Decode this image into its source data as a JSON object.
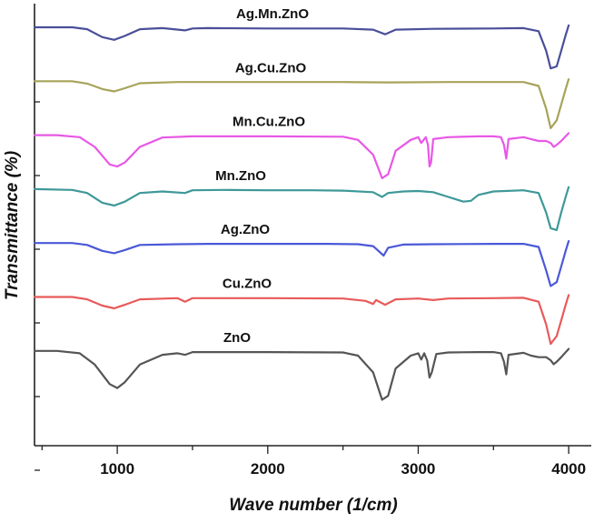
{
  "chart_data": {
    "type": "line",
    "title": "",
    "xlabel": "Wave number (1/cm)",
    "ylabel": "Transmittance (%)",
    "xlim": [
      450,
      4150
    ],
    "xticks": [
      1000,
      2000,
      3000,
      4000
    ],
    "xtick_labels": [
      "1000",
      "2000",
      "3000",
      "4000"
    ],
    "y_tick_count": 6,
    "grid": false,
    "legend": "inline labels above each curve",
    "series": [
      {
        "name": "Ag.Mn.ZnO",
        "color": "#4a4f99",
        "baseline": 0,
        "x": [
          450,
          700,
          800,
          900,
          980,
          1050,
          1150,
          1300,
          1450,
          1500,
          1600,
          2000,
          2500,
          2700,
          2780,
          2850,
          3100,
          3500,
          3700,
          3800,
          3850,
          3880,
          3920,
          3950,
          3980,
          4000
        ],
        "y": [
          0,
          0,
          -0.5,
          -2.5,
          -3.2,
          -2.2,
          -0.5,
          -0.2,
          -0.8,
          -0.3,
          -0.2,
          -0.3,
          -0.3,
          -0.6,
          -1.8,
          -0.6,
          -0.4,
          -0.3,
          -0.2,
          -1.0,
          -6.0,
          -10.5,
          -10.0,
          -6.0,
          -2.0,
          0.5
        ]
      },
      {
        "name": "Ag.Cu.ZnO",
        "color": "#a7a35a",
        "baseline": 1,
        "x": [
          450,
          700,
          800,
          900,
          980,
          1050,
          1150,
          1400,
          1600,
          2000,
          2500,
          2800,
          3200,
          3500,
          3700,
          3800,
          3850,
          3880,
          3920,
          3950,
          3980,
          4000
        ],
        "y": [
          0,
          0,
          -0.6,
          -2.0,
          -2.6,
          -1.8,
          -0.5,
          -0.2,
          -0.2,
          -0.2,
          -0.2,
          -0.3,
          -0.2,
          -0.2,
          -0.2,
          -1.2,
          -7.0,
          -12.0,
          -10.0,
          -6.0,
          -2.0,
          0.5
        ]
      },
      {
        "name": "Mn.Cu.ZnO",
        "color": "#e858e6",
        "baseline": 2,
        "x": [
          450,
          600,
          750,
          850,
          950,
          1000,
          1050,
          1150,
          1300,
          1500,
          2000,
          2500,
          2600,
          2700,
          2760,
          2800,
          2850,
          2950,
          3000,
          3020,
          3050,
          3065,
          3075,
          3085,
          3100,
          3200,
          3400,
          3500,
          3550,
          3570,
          3585,
          3600,
          3700,
          3750,
          3800,
          3850,
          3880,
          3900,
          3920,
          3950,
          4000
        ],
        "y": [
          0,
          0,
          -0.5,
          -3.0,
          -7.5,
          -8.0,
          -7.0,
          -3.0,
          -0.6,
          -0.3,
          -0.3,
          -0.4,
          -1.2,
          -5.0,
          -11.0,
          -10.0,
          -4.0,
          -1.2,
          -0.5,
          -2.0,
          -0.5,
          -2.5,
          -8.0,
          -7.0,
          -1.0,
          -0.5,
          -0.3,
          -0.3,
          -0.5,
          -2.5,
          -6.0,
          -1.0,
          -0.5,
          -1.0,
          -1.5,
          -1.5,
          -2.0,
          -3.0,
          -2.5,
          -1.5,
          0.5
        ]
      },
      {
        "name": "Mn.ZnO",
        "color": "#3f9898",
        "baseline": 3,
        "x": [
          450,
          700,
          800,
          900,
          980,
          1050,
          1150,
          1300,
          1450,
          1500,
          1700,
          2000,
          2300,
          2500,
          2700,
          2760,
          2800,
          2900,
          3000,
          3100,
          3200,
          3300,
          3350,
          3400,
          3500,
          3700,
          3800,
          3850,
          3880,
          3920,
          3950,
          3980,
          4000
        ],
        "y": [
          0,
          -0.2,
          -1.0,
          -3.5,
          -4.2,
          -3.2,
          -1.0,
          -0.6,
          -1.0,
          -0.3,
          -0.2,
          -0.3,
          -0.3,
          -0.4,
          -0.8,
          -2.0,
          -1.0,
          -0.6,
          -0.5,
          -0.8,
          -2.0,
          -3.2,
          -3.0,
          -1.5,
          -0.6,
          -0.3,
          -1.0,
          -6.0,
          -10.0,
          -10.5,
          -6.0,
          -2.0,
          0.5
        ]
      },
      {
        "name": "Ag.ZnO",
        "color": "#4a58d8",
        "baseline": 4,
        "x": [
          450,
          700,
          800,
          900,
          980,
          1050,
          1150,
          1400,
          1600,
          2000,
          2400,
          2600,
          2700,
          2770,
          2800,
          2900,
          3100,
          3500,
          3700,
          3800,
          3850,
          3880,
          3920,
          3950,
          3980,
          4000
        ],
        "y": [
          0,
          0,
          -0.5,
          -2.0,
          -2.6,
          -1.8,
          -0.5,
          -0.3,
          -0.2,
          -0.2,
          -0.2,
          -0.3,
          -0.8,
          -3.2,
          -1.2,
          -0.4,
          -0.3,
          -0.2,
          -0.2,
          -1.0,
          -7.0,
          -11.0,
          -10.0,
          -6.0,
          -2.0,
          0.5
        ]
      },
      {
        "name": "Cu.ZnO",
        "color": "#e85a5a",
        "baseline": 5,
        "x": [
          450,
          700,
          800,
          900,
          980,
          1050,
          1150,
          1400,
          1450,
          1500,
          1600,
          2000,
          2500,
          2650,
          2700,
          2720,
          2780,
          2850,
          3000,
          3100,
          3200,
          3500,
          3700,
          3800,
          3850,
          3880,
          3920,
          3950,
          3980,
          4000
        ],
        "y": [
          0,
          0,
          -0.6,
          -2.2,
          -2.9,
          -2.0,
          -0.6,
          -0.3,
          -1.2,
          -0.3,
          -0.3,
          -0.3,
          -0.4,
          -1.0,
          -1.8,
          -0.8,
          -2.0,
          -0.6,
          -0.4,
          -0.8,
          -0.4,
          -0.3,
          -0.2,
          -1.2,
          -7.0,
          -12.0,
          -10.0,
          -6.0,
          -2.0,
          0.5
        ]
      },
      {
        "name": "ZnO",
        "color": "#555555",
        "baseline": 6,
        "x": [
          450,
          600,
          750,
          850,
          950,
          1000,
          1050,
          1150,
          1300,
          1400,
          1450,
          1500,
          2000,
          2500,
          2600,
          2700,
          2760,
          2800,
          2850,
          2950,
          3000,
          3020,
          3040,
          3060,
          3075,
          3090,
          3120,
          3200,
          3400,
          3500,
          3550,
          3570,
          3585,
          3600,
          3700,
          3750,
          3800,
          3850,
          3880,
          3900,
          3920,
          3950,
          4000
        ],
        "y": [
          0,
          0,
          -0.6,
          -3.5,
          -8.5,
          -9.5,
          -8.0,
          -3.5,
          -1.0,
          -0.6,
          -1.0,
          -0.3,
          -0.3,
          -0.4,
          -1.2,
          -5.5,
          -12.5,
          -11.5,
          -4.5,
          -1.2,
          -0.6,
          -2.2,
          -0.6,
          -2.5,
          -6.8,
          -5.5,
          -0.8,
          -0.4,
          -0.3,
          -0.3,
          -0.6,
          -2.8,
          -6.0,
          -1.0,
          -0.5,
          -1.2,
          -1.6,
          -1.6,
          -2.4,
          -3.4,
          -2.8,
          -1.6,
          0.5
        ]
      }
    ]
  }
}
